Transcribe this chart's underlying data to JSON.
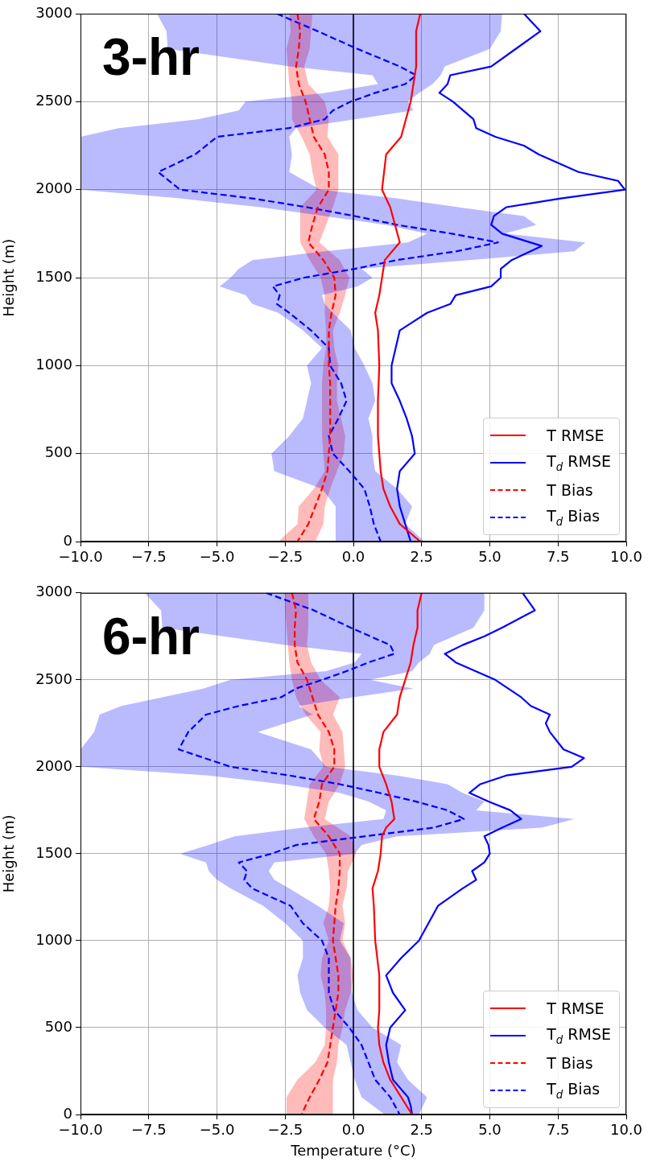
{
  "chart_data": [
    {
      "type": "line",
      "orientation": "horizontal",
      "title": "3-hr",
      "ylabel": "Height (m)",
      "xlim": [
        -10,
        10
      ],
      "xticks": [
        {
          "value": -10,
          "label": "−10.0"
        },
        {
          "value": -7.5,
          "label": "−7.5"
        },
        {
          "value": -5,
          "label": "−5.0"
        },
        {
          "value": -2.5,
          "label": "−2.5"
        },
        {
          "value": 0,
          "label": "0.0"
        },
        {
          "value": 2.5,
          "label": "2.5"
        },
        {
          "value": 5,
          "label": "5.0"
        },
        {
          "value": 7.5,
          "label": "7.5"
        },
        {
          "value": 10,
          "label": "10.0"
        }
      ],
      "ylim": [
        0,
        3000
      ],
      "yticks": [
        0,
        500,
        1000,
        1500,
        2000,
        2500,
        3000
      ],
      "grid": true,
      "legend": "bottom right",
      "ref_lines": [
        {
          "axis": "x",
          "value": 0,
          "color": "#000000"
        }
      ],
      "series": [
        {
          "name": "T RMSE",
          "color": "#ff0000",
          "line_style": "solid",
          "values": [
            2.45,
            2.3,
            2.3,
            2.1,
            1.75,
            1.2,
            1.05,
            1.35,
            1.7,
            1.15,
            1.05,
            0.95,
            0.8,
            0.9,
            0.95,
            0.9,
            0.9,
            0.95,
            1.0,
            1.1,
            1.35,
            1.7,
            2.45
          ],
          "x": [
            3000,
            2900,
            2700,
            2500,
            2300,
            2200,
            2000,
            1900,
            1700,
            1600,
            1500,
            1400,
            1300,
            1200,
            1000,
            800,
            600,
            500,
            400,
            300,
            200,
            100,
            0
          ]
        },
        {
          "name": "T$_{d}$ RMSE",
          "color": "#0000ff",
          "line_style": "solid",
          "values": [
            6.25,
            6.85,
            5.95,
            5.05,
            3.55,
            3.45,
            3.15,
            3.65,
            4.4,
            4.5,
            5.2,
            6.25,
            6.8,
            8.25,
            9.7,
            9.95,
            7.6,
            5.6,
            5.15,
            5.05,
            5.45,
            6.9,
            5.8,
            5.4,
            5.4,
            5.05,
            3.75,
            3.55,
            2.7,
            1.7,
            1.55,
            1.4,
            1.4,
            1.7,
            1.95,
            2.15,
            2.25,
            1.7,
            1.6,
            1.7,
            1.9,
            2.1
          ],
          "x": [
            3000,
            2900,
            2800,
            2700,
            2650,
            2600,
            2550,
            2500,
            2400,
            2350,
            2300,
            2250,
            2200,
            2100,
            2050,
            2000,
            1950,
            1900,
            1850,
            1800,
            1750,
            1680,
            1600,
            1550,
            1500,
            1450,
            1400,
            1350,
            1300,
            1200,
            1100,
            1000,
            900,
            800,
            700,
            600,
            500,
            400,
            300,
            200,
            100,
            0
          ]
        },
        {
          "name": "T Bias",
          "color": "#ff0000",
          "line_style": "dashed",
          "values": [
            -2.05,
            -1.95,
            -2.0,
            -2.1,
            -2.0,
            -1.75,
            -1.6,
            -1.45,
            -1.05,
            -0.9,
            -0.9,
            -1.3,
            -1.5,
            -1.65,
            -1.1,
            -0.7,
            -0.65,
            -0.8,
            -0.9,
            -0.9,
            -0.9,
            -0.85,
            -0.85,
            -0.85,
            -0.85,
            -0.9,
            -0.95,
            -1.15,
            -1.4,
            -1.65,
            -2.05
          ],
          "x": [
            3000,
            2900,
            2800,
            2700,
            2600,
            2500,
            2400,
            2300,
            2200,
            2100,
            2000,
            1900,
            1800,
            1700,
            1600,
            1500,
            1400,
            1300,
            1200,
            1100,
            1000,
            900,
            800,
            700,
            600,
            500,
            400,
            300,
            200,
            100,
            0
          ],
          "lower": [
            -2.35,
            -2.3,
            -2.45,
            -2.4,
            -2.35,
            -2.25,
            -2.25,
            -1.9,
            -1.6,
            -1.5,
            -1.35,
            -1.95,
            -1.95,
            -1.95,
            -1.6,
            -1.2,
            -1.05,
            -1.05,
            -1.0,
            -1.0,
            -1.1,
            -1.15,
            -1.15,
            -1.15,
            -1.15,
            -1.1,
            -1.05,
            -1.45,
            -2.0,
            -2.05,
            -2.75
          ],
          "upper": [
            -1.5,
            -1.55,
            -1.6,
            -1.8,
            -1.65,
            -1.05,
            -0.9,
            -0.95,
            -0.55,
            -0.55,
            -0.55,
            -0.75,
            -1.0,
            -1.25,
            -0.5,
            -0.15,
            -0.3,
            -0.5,
            -0.75,
            -0.7,
            -0.55,
            -0.6,
            -0.6,
            -0.45,
            -0.3,
            -0.35,
            -0.6,
            -0.85,
            -1.05,
            -1.1,
            -1.4
          ]
        },
        {
          "name": "T$_{d}$ Bias",
          "color": "#0000ff",
          "line_style": "dashed",
          "values": [
            -2.8,
            -1.3,
            0.15,
            1.7,
            2.3,
            1.9,
            0.8,
            -0.1,
            -0.75,
            -1.05,
            -2.35,
            -5.0,
            -5.8,
            -7.15,
            -6.35,
            -3.7,
            -1.7,
            0.05,
            1.6,
            3.6,
            5.3,
            3.8,
            1.6,
            0.05,
            -1.8,
            -2.95,
            -2.7,
            -2.8,
            -2.35,
            -1.55,
            -0.9,
            -0.85,
            -0.45,
            -0.25,
            -0.55,
            -0.9,
            -0.75,
            -0.15,
            0.4,
            0.6,
            0.75,
            1.0
          ],
          "x": [
            3000,
            2900,
            2800,
            2700,
            2650,
            2600,
            2550,
            2500,
            2450,
            2400,
            2350,
            2300,
            2200,
            2100,
            2000,
            1950,
            1900,
            1850,
            1800,
            1750,
            1700,
            1650,
            1600,
            1550,
            1500,
            1450,
            1400,
            1350,
            1300,
            1200,
            1100,
            1000,
            900,
            800,
            700,
            600,
            500,
            400,
            300,
            200,
            100,
            0
          ],
          "lower": [
            -7.2,
            -6.85,
            -6.8,
            -2.35,
            0.7,
            0.9,
            -1.05,
            -3.95,
            -4.2,
            -5.7,
            -8.6,
            -10,
            -10,
            -10,
            -10,
            -6.35,
            -3.4,
            -1.05,
            1.2,
            2.7,
            2.0,
            -1.05,
            -3.7,
            -4.2,
            -4.5,
            -4.9,
            -3.95,
            -3.7,
            -2.75,
            -1.85,
            -1.15,
            -1.7,
            -1.55,
            -1.7,
            -1.85,
            -2.35,
            -3.0,
            -2.9,
            -1.15,
            -0.65,
            -0.65,
            -0.65
          ],
          "upper": [
            5.45,
            5.4,
            5.0,
            3.35,
            3.2,
            2.9,
            2.4,
            2.0,
            2.2,
            0.05,
            -2.1,
            -2.35,
            -2.25,
            -2.35,
            -1.2,
            1.6,
            3.85,
            6.25,
            6.7,
            5.55,
            8.5,
            8.1,
            4.25,
            0.3,
            0.7,
            0.15,
            -1.15,
            -1.05,
            -0.75,
            -0.1,
            0.05,
            0.4,
            0.7,
            0.8,
            0.55,
            0.7,
            0.7,
            0.8,
            1.6,
            2.15,
            1.9,
            2.6
          ]
        }
      ]
    },
    {
      "type": "line",
      "orientation": "horizontal",
      "title": "6-hr",
      "xlabel": "Temperature (°C)",
      "ylabel": "Height (m)",
      "xlim": [
        -10,
        10
      ],
      "xticks": [
        {
          "value": -10,
          "label": "−10.0"
        },
        {
          "value": -7.5,
          "label": "−7.5"
        },
        {
          "value": -5,
          "label": "−5.0"
        },
        {
          "value": -2.5,
          "label": "−2.5"
        },
        {
          "value": 0,
          "label": "0.0"
        },
        {
          "value": 2.5,
          "label": "2.5"
        },
        {
          "value": 5,
          "label": "5.0"
        },
        {
          "value": 7.5,
          "label": "7.5"
        },
        {
          "value": 10,
          "label": "10.0"
        }
      ],
      "ylim": [
        0,
        3000
      ],
      "yticks": [
        0,
        500,
        1000,
        1500,
        2000,
        2500,
        3000
      ],
      "grid": true,
      "legend": "bottom right",
      "ref_lines": [
        {
          "axis": "x",
          "value": 0,
          "color": "#000000"
        }
      ],
      "series": [
        {
          "name": "T RMSE",
          "color": "#ff0000",
          "line_style": "solid",
          "values": [
            2.5,
            2.35,
            2.35,
            2.2,
            2.1,
            1.9,
            1.7,
            1.6,
            1.1,
            0.95,
            0.95,
            1.2,
            1.4,
            1.5,
            1.2,
            1.05,
            1.0,
            0.9,
            0.7,
            0.75,
            0.8,
            0.95,
            0.95,
            0.9,
            0.95,
            1.1,
            1.35,
            1.75,
            2.15
          ],
          "x": [
            3000,
            2900,
            2800,
            2700,
            2600,
            2500,
            2400,
            2300,
            2200,
            2100,
            2000,
            1900,
            1800,
            1700,
            1650,
            1600,
            1500,
            1400,
            1300,
            1200,
            1000,
            800,
            600,
            500,
            400,
            300,
            200,
            100,
            0
          ]
        },
        {
          "name": "T$_{d}$ RMSE",
          "color": "#0000ff",
          "line_style": "solid",
          "values": [
            6.2,
            6.65,
            5.45,
            4.8,
            4.0,
            3.35,
            3.75,
            5.2,
            6.15,
            6.5,
            7.2,
            7.05,
            7.2,
            7.7,
            8.45,
            8.0,
            5.6,
            4.65,
            4.25,
            4.95,
            5.75,
            6.15,
            5.45,
            4.8,
            4.95,
            5.0,
            4.8,
            4.35,
            4.5,
            4.0,
            3.1,
            2.4,
            1.75,
            1.2,
            1.45,
            1.9,
            1.35,
            1.2,
            1.3,
            1.45,
            2.0,
            2.1,
            2.15
          ],
          "x": [
            3000,
            2900,
            2800,
            2750,
            2700,
            2650,
            2600,
            2500,
            2400,
            2350,
            2300,
            2250,
            2200,
            2100,
            2050,
            2000,
            1950,
            1900,
            1850,
            1800,
            1750,
            1700,
            1650,
            1600,
            1550,
            1500,
            1450,
            1400,
            1350,
            1300,
            1200,
            1000,
            900,
            800,
            700,
            600,
            500,
            400,
            300,
            200,
            100,
            50,
            0
          ]
        },
        {
          "name": "T Bias",
          "color": "#ff0000",
          "line_style": "dashed",
          "values": [
            -2.25,
            -2.1,
            -2.15,
            -2.15,
            -2.05,
            -1.7,
            -1.5,
            -1.3,
            -0.9,
            -0.7,
            -0.7,
            -1.15,
            -1.25,
            -1.45,
            -0.9,
            -0.5,
            -0.5,
            -0.55,
            -0.65,
            -0.7,
            -0.75,
            -0.65,
            -0.55,
            -0.55,
            -0.65,
            -0.75,
            -0.85,
            -0.95,
            -1.25,
            -1.6,
            -1.9
          ],
          "x": [
            3000,
            2900,
            2800,
            2700,
            2600,
            2500,
            2400,
            2300,
            2200,
            2100,
            2000,
            1900,
            1800,
            1700,
            1600,
            1500,
            1400,
            1300,
            1200,
            1100,
            1000,
            900,
            800,
            700,
            600,
            500,
            400,
            300,
            200,
            100,
            0
          ],
          "lower": [
            -2.5,
            -2.5,
            -2.45,
            -2.4,
            -2.35,
            -2.25,
            -2.1,
            -1.75,
            -1.2,
            -1.25,
            -1.1,
            -1.6,
            -1.7,
            -1.8,
            -1.45,
            -1.0,
            -0.9,
            -0.85,
            -0.9,
            -1.1,
            -0.9,
            -1.15,
            -1.2,
            -1.05,
            -1.0,
            -1.0,
            -1.05,
            -1.4,
            -2.05,
            -2.45,
            -2.45
          ],
          "upper": [
            -1.65,
            -1.65,
            -1.65,
            -1.7,
            -1.55,
            -1.2,
            -0.5,
            -0.75,
            -0.4,
            -0.35,
            -0.3,
            -0.5,
            -0.9,
            -1.05,
            -0.1,
            0.1,
            -0.2,
            -0.25,
            -0.4,
            -0.3,
            -0.4,
            -0.1,
            0.0,
            -0.1,
            -0.3,
            -0.4,
            -0.55,
            -0.6,
            -0.75,
            -0.75,
            -0.75
          ]
        },
        {
          "name": "T$_{d}$ Bias",
          "color": "#0000ff",
          "line_style": "dashed",
          "values": [
            -3.2,
            -1.45,
            -0.1,
            1.35,
            1.5,
            0.55,
            -0.25,
            -1.15,
            -2.1,
            -2.65,
            -4.2,
            -5.4,
            -6.05,
            -6.4,
            -4.5,
            -2.35,
            -0.5,
            0.95,
            2.3,
            3.45,
            4.05,
            2.95,
            0.4,
            -2.1,
            -3.0,
            -4.2,
            -3.9,
            -4.0,
            -3.7,
            -2.3,
            -1.85,
            -1.15,
            -0.9,
            -0.9,
            -0.9,
            -0.7,
            -0.15,
            0.3,
            0.55,
            0.8,
            1.35,
            1.7
          ],
          "x": [
            3000,
            2900,
            2800,
            2700,
            2650,
            2600,
            2550,
            2500,
            2450,
            2400,
            2350,
            2300,
            2200,
            2100,
            2000,
            1950,
            1900,
            1850,
            1800,
            1750,
            1700,
            1650,
            1600,
            1550,
            1500,
            1450,
            1400,
            1350,
            1300,
            1200,
            1100,
            1000,
            900,
            800,
            700,
            600,
            500,
            400,
            300,
            200,
            100,
            0
          ],
          "lower": [
            -7.65,
            -7.05,
            -7.0,
            -2.5,
            0.3,
            0.05,
            -1.0,
            -4.5,
            -5.5,
            -7.0,
            -8.5,
            -9.3,
            -9.5,
            -10,
            -10,
            -5.3,
            -2.6,
            -0.5,
            0.55,
            1.2,
            1.1,
            -1.85,
            -4.35,
            -5.3,
            -6.35,
            -5.4,
            -5.3,
            -5.0,
            -4.5,
            -3.3,
            -2.5,
            -1.85,
            -1.85,
            -2.05,
            -1.95,
            -1.7,
            -1.05,
            -0.25,
            -0.1,
            0.05,
            0.3,
            1.15
          ],
          "upper": [
            4.8,
            4.8,
            4.4,
            2.95,
            2.8,
            2.4,
            2.15,
            0.6,
            2.2,
            0.0,
            -2.0,
            -1.5,
            -3.5,
            -1.55,
            -1.0,
            1.6,
            3.45,
            4.0,
            4.8,
            4.5,
            8.1,
            6.9,
            1.6,
            0.3,
            0.05,
            -2.9,
            -3.1,
            -2.9,
            -2.35,
            -1.3,
            -0.35,
            -0.5,
            -0.1,
            -0.1,
            -0.05,
            0.15,
            0.7,
            1.75,
            1.6,
            2.0,
            2.7,
            2.4
          ]
        }
      ]
    }
  ]
}
